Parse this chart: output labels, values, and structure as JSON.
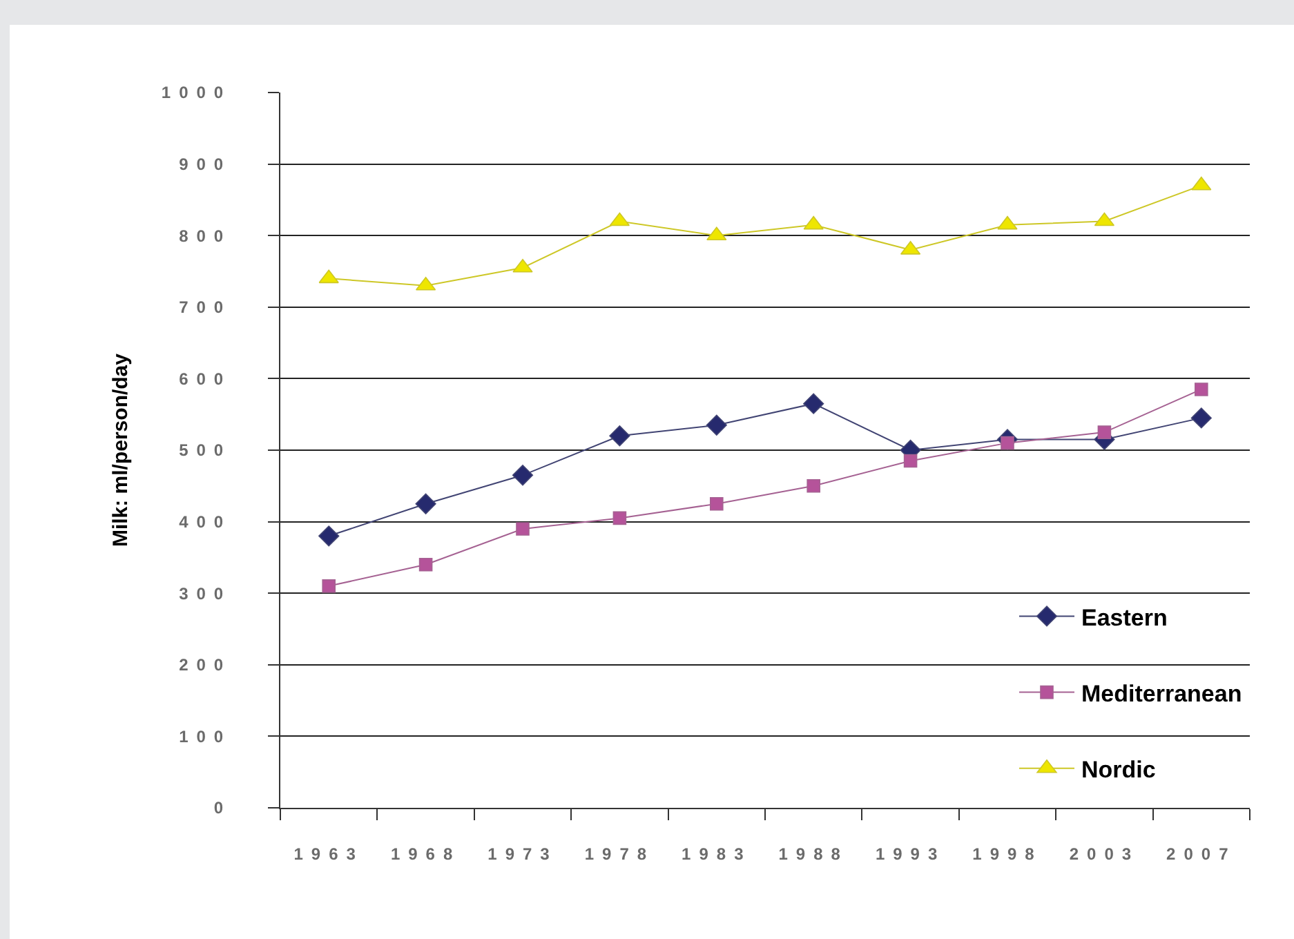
{
  "chart_data": {
    "type": "line",
    "ylabel": "Milk: ml/person/day",
    "categories": [
      "1963",
      "1968",
      "1973",
      "1978",
      "1983",
      "1988",
      "1993",
      "1998",
      "2003",
      "2007"
    ],
    "ylim": [
      0,
      1000
    ],
    "yticks": [
      0,
      100,
      200,
      300,
      400,
      500,
      600,
      700,
      800,
      900,
      1000
    ],
    "grid": "y",
    "legend": "bottom right",
    "series": [
      {
        "name": "Eastern",
        "color": "#262a6e",
        "marker": "diamond",
        "values": [
          380,
          425,
          465,
          520,
          535,
          565,
          500,
          515,
          515,
          545
        ]
      },
      {
        "name": "Mediterranean",
        "color": "#b5539a",
        "marker": "square",
        "values": [
          310,
          340,
          390,
          405,
          425,
          450,
          485,
          510,
          525,
          585
        ]
      },
      {
        "name": "Nordic",
        "color": "#eee600",
        "marker": "triangle",
        "values": [
          740,
          730,
          755,
          820,
          800,
          815,
          780,
          815,
          820,
          870
        ]
      }
    ]
  }
}
